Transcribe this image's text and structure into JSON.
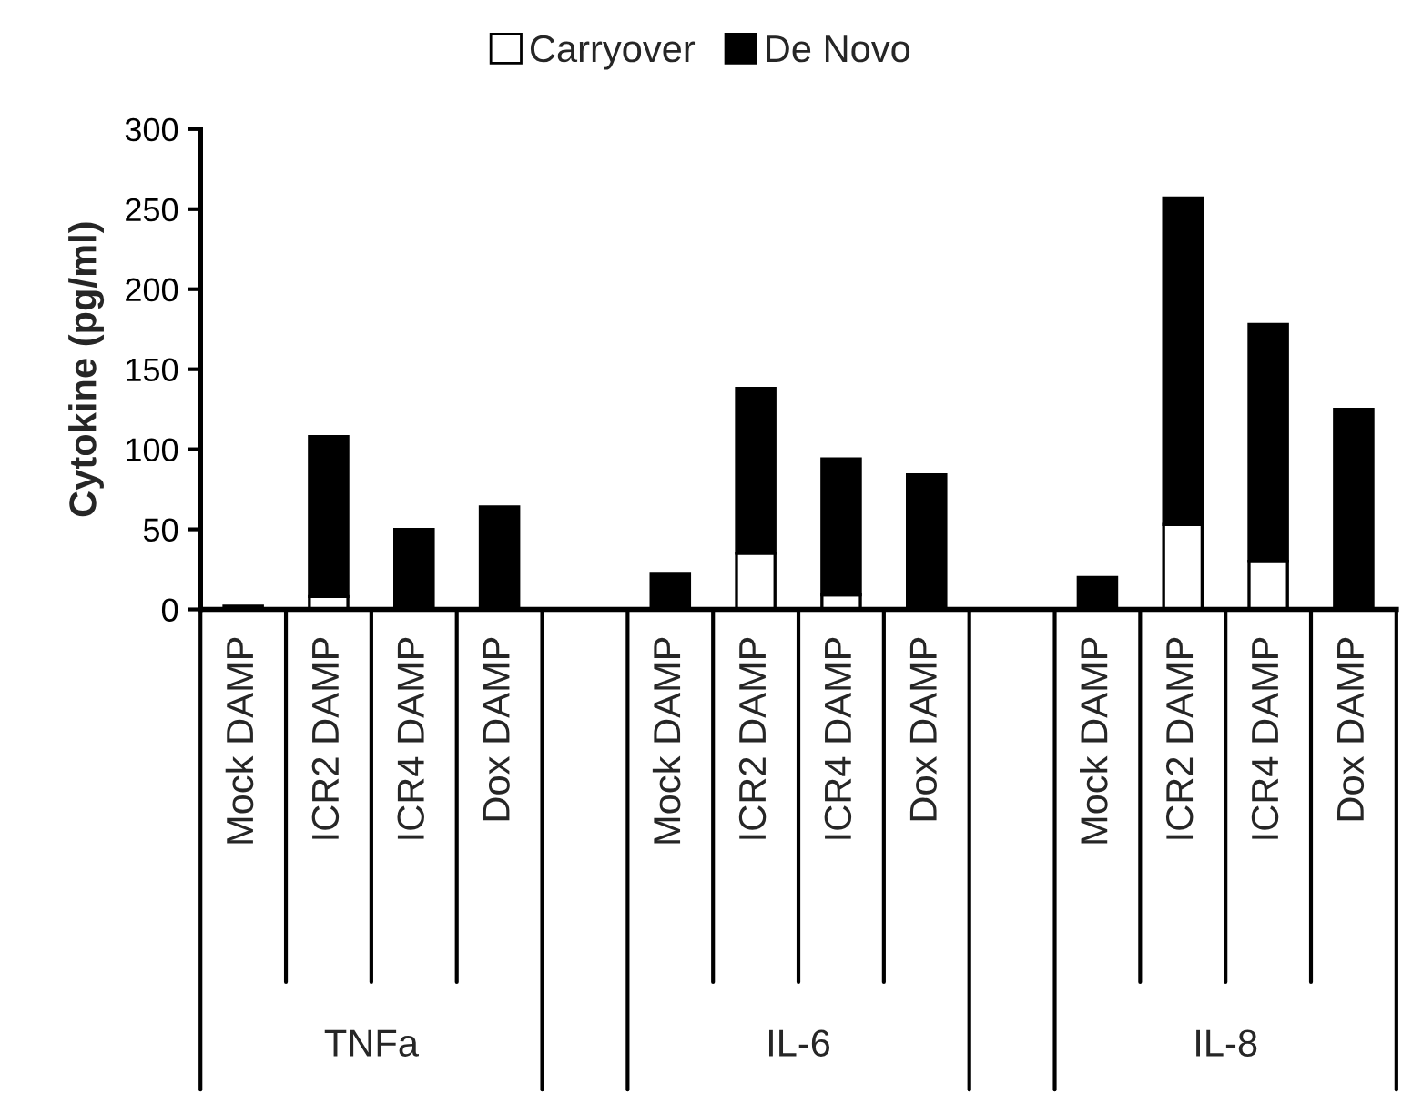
{
  "chart_data": {
    "type": "bar",
    "stacked": true,
    "ylabel": "Cytokine (pg/ml)",
    "categories": [
      "Mock DAMP",
      "ICR2 DAMP",
      "ICR4 DAMP",
      "Dox DAMP",
      null,
      "Mock DAMP",
      "ICR2 DAMP",
      "ICR4 DAMP",
      "Dox DAMP",
      null,
      "Mock DAMP",
      "ICR2 DAMP",
      "ICR4 DAMP",
      "Dox DAMP"
    ],
    "series": [
      {
        "name": "Carryover",
        "color": "#ffffff",
        "values": [
          0,
          8,
          0,
          0,
          null,
          0,
          35,
          9,
          0,
          null,
          0,
          53,
          30,
          0
        ]
      },
      {
        "name": "De Novo",
        "color": "#000000",
        "values": [
          2,
          100,
          50,
          64,
          null,
          22,
          103,
          85,
          84,
          null,
          20,
          204,
          148,
          125
        ]
      }
    ],
    "ylim": [
      0,
      300
    ],
    "yticks": [
      0,
      50,
      100,
      150,
      200,
      250,
      300
    ],
    "annotations": [
      "TNFa",
      "IL-6",
      "IL-8"
    ],
    "grid": false,
    "legend": "top"
  }
}
